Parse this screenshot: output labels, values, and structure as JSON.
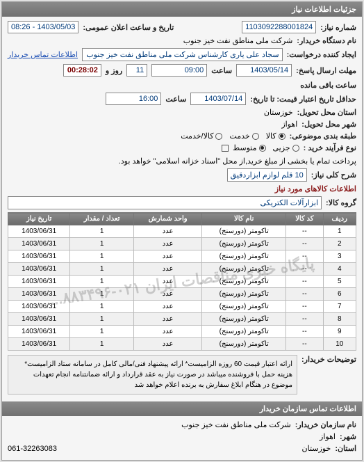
{
  "header": {
    "title": "جزئیات اطلاعات نیاز"
  },
  "meta": {
    "need_no_label": "شماره نیاز:",
    "need_no": "1103092288001824",
    "announce_label": "تاریخ و ساعت اعلان عمومی:",
    "announce_value": "1403/05/03 - 08:26",
    "buyer_org_label": "نام دستگاه خریدار:",
    "buyer_org": "شرکت ملی مناطق نفت خیز جنوب",
    "creator_label": "ایجاد کننده درخواست:",
    "creator": "سجاد علی یاری کارشناس شرکت ملی مناطق نفت خیز جنوب",
    "contact_link": "اطلاعات تماس خریدار",
    "reply_deadline_label": "مهلت ارسال پاسخ:",
    "to_date_label": "تا تاریخ:",
    "reply_date": "1403/05/14",
    "time_label": "ساعت",
    "reply_time": "09:00",
    "days_label": "روز و",
    "days_remaining": "11",
    "remain_time": "00:28:02",
    "remain_label": "ساعت باقی مانده",
    "price_deadline_label": "حداقل تاریخ اعتبار قیمت: تا تاریخ:",
    "price_date": "1403/07/14",
    "price_time": "16:00",
    "province_label": "استان محل تحویل:",
    "province": "خوزستان",
    "city_label": "شهر محل تحویل:",
    "city": "اهواز",
    "category_label": "طبقه بندی موضوعی:",
    "cat_goods": "کالا",
    "cat_service": "خدمت",
    "cat_both": "کالا/خدمت",
    "buy_type_label": "نوع فرآیند خرید :",
    "bt_small": "جزیی",
    "bt_medium": "متوسط",
    "bt_note": "پرداخت تمام یا بخشی از مبلغ خرید,از محل \"اسناد خزانه اسلامی\" خواهد بود.",
    "need_desc_label": "شرح کلی نیاز:",
    "need_desc": "10 قلم لوازم ابزاردقیق"
  },
  "goods_section": {
    "title": "اطلاعات کالاهای مورد نیاز",
    "group_label": "گروه کالا:",
    "group_value": "ابزارآلات الکتریکی"
  },
  "table": {
    "columns": [
      "ردیف",
      "کد کالا",
      "نام کالا",
      "واحد شمارش",
      "تعداد / مقدار",
      "تاریخ نیاز"
    ],
    "rows": [
      [
        "1",
        "--",
        "تاکومتر (دورسنج)",
        "عدد",
        "1",
        "1403/06/31"
      ],
      [
        "2",
        "--",
        "تاکومتر (دورسنج)",
        "عدد",
        "1",
        "1403/06/31"
      ],
      [
        "3",
        "--",
        "تاکومتر (دورسنج)",
        "عدد",
        "1",
        "1403/06/31"
      ],
      [
        "4",
        "--",
        "تاکومتر (دورسنج)",
        "عدد",
        "1",
        "1403/06/31"
      ],
      [
        "5",
        "--",
        "تاکومتر (دورسنج)",
        "عدد",
        "1",
        "1403/06/31"
      ],
      [
        "6",
        "--",
        "تاکومتر (دورسنج)",
        "عدد",
        "1",
        "1403/06/31"
      ],
      [
        "7",
        "--",
        "تاکومتر (دورسنج)",
        "عدد",
        "1",
        "1403/06/31"
      ],
      [
        "8",
        "--",
        "تاکومتر (دورسنج)",
        "عدد",
        "1",
        "1403/06/31"
      ],
      [
        "9",
        "--",
        "تاکومتر (دورسنج)",
        "عدد",
        "1",
        "1403/06/31"
      ],
      [
        "10",
        "--",
        "تاکومتر (دورسنج)",
        "عدد",
        "1",
        "1403/06/31"
      ]
    ],
    "watermark": "پایگاه خبری مناقصات ایران  ۰۲۱-۸۸۳۴۹۶..."
  },
  "notes": {
    "label": "توضیحات خریدار:",
    "text": "ارائه اعتبار قیمت 60 روزه الزامیست* ارائه پیشنهاد فنی/مالی کامل در سامانه ستاد الزامیست* هزینه حمل با فروشنده میباشد در صورت نیاز به عقد قرارداد و ارائه ضمانتنامه انجام تعهدات موضوع در هنگام ابلاغ سفارش به برنده اعلام خواهد شد"
  },
  "buyer_info": {
    "title": "اطلاعات تماس سازمان خریدار",
    "org_label": "نام سازمان خریدار:",
    "org": "شرکت ملی مناطق نفت خیز جنوب",
    "city_label": "شهر:",
    "city": "اهواز",
    "province_label": "استان:",
    "province": "خوزستان",
    "phone_prefix": "061-32263083"
  }
}
